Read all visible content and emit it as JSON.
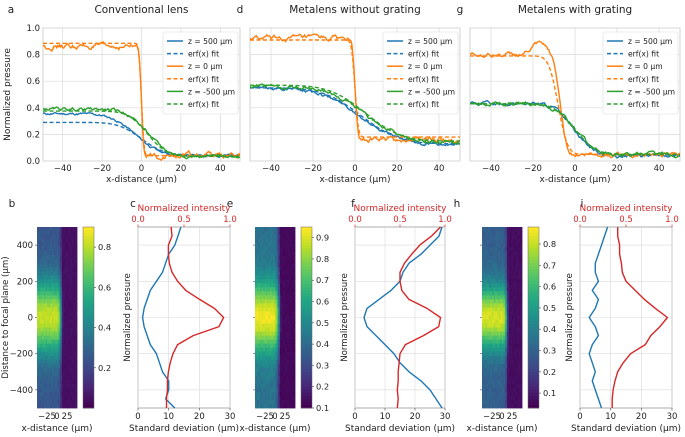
{
  "colors": {
    "blue": "#1f77b4",
    "orange": "#ff7f0e",
    "green": "#2ca02c",
    "red": "#d62728",
    "grid": "#d9d9d9",
    "axis": "#555555"
  },
  "top_panels": [
    {
      "letter": "a",
      "title": "Conventional lens"
    },
    {
      "letter": "d",
      "title": "Metalens without grating"
    },
    {
      "letter": "g",
      "title": "Metalens with grating"
    }
  ],
  "top_axes": {
    "xlabel": "x-distance (µm)",
    "ylabel": "Normalized pressure",
    "xticks": [
      "−40",
      "−20",
      "0",
      "20",
      "40"
    ],
    "yticks": [
      "0.0",
      "0.2",
      "0.4",
      "0.6",
      "0.8",
      "1.0"
    ]
  },
  "legend": [
    {
      "label": "z = 500 µm",
      "color": "blue",
      "style": "solid"
    },
    {
      "label": "erf(x) fit",
      "color": "blue",
      "style": "dashed"
    },
    {
      "label": "z = 0 µm",
      "color": "orange",
      "style": "solid"
    },
    {
      "label": "erf(x) fit",
      "color": "orange",
      "style": "dashed"
    },
    {
      "label": "z = -500 µm",
      "color": "green",
      "style": "solid"
    },
    {
      "label": "erf(x) fit",
      "color": "green",
      "style": "dashed"
    }
  ],
  "heatmaps": [
    {
      "letter": "b",
      "cbar_ticks": [
        "0.2",
        "0.4",
        "0.6",
        "0.8"
      ]
    },
    {
      "letter": "e",
      "cbar_ticks": [
        "0.1",
        "0.2",
        "0.3",
        "0.4",
        "0.5",
        "0.6",
        "0.7",
        "0.8",
        "0.9"
      ]
    },
    {
      "letter": "h",
      "cbar_ticks": [
        "0.1",
        "0.2",
        "0.3",
        "0.4",
        "0.5",
        "0.6",
        "0.7",
        "0.8"
      ]
    }
  ],
  "heatmap_axes": {
    "ylabel": "Distance to focal plane (µm)",
    "yticks": [
      "400",
      "200",
      "0",
      "−200",
      "−400"
    ],
    "xlabel": "x-distance (µm)",
    "xticks": [
      "−25",
      "0",
      "25"
    ]
  },
  "profiles": [
    {
      "letter": "c"
    },
    {
      "letter": "f"
    },
    {
      "letter": "i"
    }
  ],
  "profile_axes": {
    "top_label": "Normalized intensity",
    "top_ticks": [
      "0.0",
      "0.5",
      "1.0"
    ],
    "xlabel": "Standard deviation (µm)",
    "xticks": [
      "0",
      "10",
      "20",
      "30"
    ],
    "ylabel": "Normalized pressure"
  },
  "chart_data": [
    {
      "type": "line",
      "panel": "a",
      "title": "Conventional lens",
      "xlabel": "x-distance (µm)",
      "ylabel": "Normalized pressure",
      "xlim": [
        -50,
        50
      ],
      "ylim": [
        0,
        1
      ],
      "series": [
        {
          "name": "z = 500 µm",
          "kind": "erf",
          "style": "solid",
          "color": "blue",
          "left": 0.355,
          "right": 0.04,
          "center": -3,
          "width": 14,
          "noise": 0.008
        },
        {
          "name": "erf(x) fit",
          "kind": "erf",
          "style": "dashed",
          "color": "blue",
          "left": 0.29,
          "right": 0.045,
          "center": 0,
          "width": 13,
          "noise": 0
        },
        {
          "name": "z = 0 µm",
          "kind": "erf",
          "style": "solid",
          "color": "orange",
          "left": 0.86,
          "right": 0.04,
          "center": 0,
          "width": 1.3,
          "noise": 0.018
        },
        {
          "name": "erf(x) fit",
          "kind": "erf",
          "style": "dashed",
          "color": "orange",
          "left": 0.885,
          "right": 0.04,
          "center": 0,
          "width": 1.4,
          "noise": 0
        },
        {
          "name": "z = -500 µm",
          "kind": "erf",
          "style": "solid",
          "color": "green",
          "left": 0.39,
          "right": 0.035,
          "center": 3,
          "width": 12,
          "noise": 0.01
        },
        {
          "name": "erf(x) fit",
          "kind": "erf",
          "style": "dashed",
          "color": "green",
          "left": 0.375,
          "right": 0.035,
          "center": 3,
          "width": 11,
          "noise": 0
        }
      ]
    },
    {
      "type": "line",
      "panel": "d",
      "title": "Metalens without grating",
      "xlabel": "x-distance (µm)",
      "ylabel": "Normalized pressure",
      "xlim": [
        -50,
        50
      ],
      "ylim": [
        0,
        1
      ],
      "series": [
        {
          "name": "z = 500 µm",
          "kind": "erf",
          "style": "solid",
          "color": "blue",
          "left": 0.55,
          "right": 0.12,
          "center": 3,
          "width": 22,
          "noise": 0.01
        },
        {
          "name": "erf(x) fit",
          "kind": "erf",
          "style": "dashed",
          "color": "blue",
          "left": 0.55,
          "right": 0.13,
          "center": 3,
          "width": 20,
          "noise": 0
        },
        {
          "name": "z = 0 µm",
          "kind": "erf",
          "style": "solid",
          "color": "orange",
          "left": 0.92,
          "right": 0.16,
          "center": 0,
          "width": 1.6,
          "noise": 0.018
        },
        {
          "name": "erf(x) fit",
          "kind": "erf",
          "style": "dashed",
          "color": "orange",
          "left": 0.91,
          "right": 0.18,
          "center": 0,
          "width": 1.8,
          "noise": 0
        },
        {
          "name": "z = -500 µm",
          "kind": "erf",
          "style": "solid",
          "color": "green",
          "left": 0.56,
          "right": 0.14,
          "center": 5,
          "width": 20,
          "noise": 0.012
        },
        {
          "name": "erf(x) fit",
          "kind": "erf",
          "style": "dashed",
          "color": "green",
          "left": 0.57,
          "right": 0.15,
          "center": 5,
          "width": 19,
          "noise": 0
        }
      ]
    },
    {
      "type": "line",
      "panel": "g",
      "title": "Metalens with grating",
      "xlabel": "x-distance (µm)",
      "ylabel": "Normalized pressure",
      "xlim": [
        -50,
        50
      ],
      "ylim": [
        0,
        1
      ],
      "series": [
        {
          "name": "z = 500 µm",
          "kind": "erf",
          "style": "solid",
          "color": "blue",
          "left": 0.43,
          "right": 0.04,
          "center": 0,
          "width": 11,
          "noise": 0.012
        },
        {
          "name": "erf(x) fit",
          "kind": "erf",
          "style": "dashed",
          "color": "blue",
          "left": 0.43,
          "right": 0.045,
          "center": 0,
          "width": 11,
          "noise": 0
        },
        {
          "name": "z = 0 µm",
          "kind": "erf",
          "style": "solid",
          "color": "orange",
          "left": 0.8,
          "right": 0.05,
          "center": -7,
          "width": 3.5,
          "noise": 0.015,
          "bump": {
            "x": -17,
            "h": 0.08,
            "w": 5
          }
        },
        {
          "name": "erf(x) fit",
          "kind": "erf",
          "style": "dashed",
          "color": "orange",
          "left": 0.79,
          "right": 0.05,
          "center": -8,
          "width": 5,
          "noise": 0
        },
        {
          "name": "z = -500 µm",
          "kind": "erf",
          "style": "solid",
          "color": "green",
          "left": 0.43,
          "right": 0.05,
          "center": 0,
          "width": 11,
          "noise": 0.013
        },
        {
          "name": "erf(x) fit",
          "kind": "erf",
          "style": "dashed",
          "color": "green",
          "left": 0.43,
          "right": 0.05,
          "center": 0,
          "width": 11,
          "noise": 0
        }
      ]
    },
    {
      "type": "heatmap",
      "panel": "b",
      "xlabel": "x-distance (µm)",
      "ylabel": "Distance to focal plane (µm)",
      "xlim": [
        -50,
        50
      ],
      "ylim": [
        -500,
        500
      ],
      "colormap": "viridis",
      "clim": [
        0.0,
        0.9
      ],
      "field": {
        "edge": 10,
        "edge_width": 5,
        "focus": 0.82,
        "spread": 0.3,
        "beam_width": 200,
        "dark": 0.04
      }
    },
    {
      "type": "heatmap",
      "panel": "e",
      "xlabel": "x-distance (µm)",
      "ylabel": "Distance to focal plane (µm)",
      "xlim": [
        -50,
        50
      ],
      "ylim": [
        -500,
        500
      ],
      "colormap": "viridis",
      "clim": [
        0.1,
        0.95
      ],
      "field": {
        "edge": 10,
        "edge_width": 7,
        "focus": 0.93,
        "spread": 0.45,
        "beam_width": 190,
        "dark": 0.12
      }
    },
    {
      "type": "heatmap",
      "panel": "h",
      "xlabel": "x-distance (µm)",
      "ylabel": "Distance to focal plane (µm)",
      "xlim": [
        -50,
        50
      ],
      "ylim": [
        -500,
        500
      ],
      "colormap": "viridis",
      "clim": [
        0.03,
        0.88
      ],
      "field": {
        "edge": 12,
        "edge_width": 5,
        "focus": 0.83,
        "spread": 0.35,
        "beam_width": 170,
        "dark": 0.06
      }
    },
    {
      "type": "line",
      "panel": "c",
      "xlabel": "Standard deviation (µm)",
      "x2label": "Normalized intensity",
      "xlim": [
        0,
        30
      ],
      "x2lim": [
        0,
        1
      ],
      "ylim": [
        -500,
        500
      ],
      "orientation": "vertical",
      "series": [
        {
          "name": "Standard deviation",
          "color": "blue",
          "axis": "bottom",
          "z": [
            -500,
            -450,
            -400,
            -350,
            -300,
            -250,
            -200,
            -150,
            -100,
            -50,
            0,
            50,
            100,
            150,
            200,
            250,
            300,
            350,
            400,
            450,
            500
          ],
          "v": [
            12,
            9,
            10,
            10,
            8,
            7,
            6,
            4,
            3,
            2,
            1.5,
            2,
            3,
            4,
            6,
            8,
            9,
            10,
            12,
            13,
            14
          ]
        },
        {
          "name": "Normalized intensity",
          "color": "red",
          "axis": "top",
          "z": [
            -500,
            -450,
            -400,
            -350,
            -300,
            -250,
            -200,
            -150,
            -100,
            -50,
            0,
            50,
            100,
            150,
            200,
            250,
            300,
            350,
            400,
            450,
            500
          ],
          "v": [
            0.31,
            0.31,
            0.32,
            0.32,
            0.33,
            0.35,
            0.38,
            0.43,
            0.6,
            0.88,
            0.93,
            0.83,
            0.67,
            0.52,
            0.43,
            0.37,
            0.34,
            0.33,
            0.33,
            0.37,
            0.36
          ]
        }
      ]
    },
    {
      "type": "line",
      "panel": "f",
      "xlabel": "Standard deviation (µm)",
      "x2label": "Normalized intensity",
      "xlim": [
        0,
        30
      ],
      "x2lim": [
        0,
        1
      ],
      "ylim": [
        -500,
        500
      ],
      "orientation": "vertical",
      "series": [
        {
          "name": "Standard deviation",
          "color": "blue",
          "axis": "bottom",
          "z": [
            -500,
            -450,
            -400,
            -350,
            -300,
            -250,
            -200,
            -150,
            -100,
            -50,
            0,
            50,
            100,
            150,
            200,
            250,
            300,
            350,
            400,
            450,
            500
          ],
          "v": [
            29,
            27,
            25,
            22,
            18,
            15,
            13,
            10,
            7,
            4,
            3,
            4,
            8,
            12,
            15,
            16,
            18,
            22,
            25,
            28,
            29
          ]
        },
        {
          "name": "Normalized intensity",
          "color": "red",
          "axis": "top",
          "z": [
            -500,
            -450,
            -400,
            -350,
            -300,
            -250,
            -200,
            -150,
            -100,
            -50,
            0,
            50,
            100,
            150,
            200,
            250,
            300,
            350,
            400,
            450,
            500
          ],
          "v": [
            0.47,
            0.48,
            0.47,
            0.48,
            0.48,
            0.49,
            0.5,
            0.56,
            0.76,
            0.93,
            0.95,
            0.8,
            0.6,
            0.52,
            0.5,
            0.5,
            0.55,
            0.63,
            0.72,
            0.85,
            0.95
          ]
        }
      ]
    },
    {
      "type": "line",
      "panel": "i",
      "xlabel": "Standard deviation (µm)",
      "x2label": "Normalized intensity",
      "xlim": [
        0,
        30
      ],
      "x2lim": [
        0,
        1
      ],
      "ylim": [
        -500,
        500
      ],
      "orientation": "vertical",
      "series": [
        {
          "name": "Standard deviation",
          "color": "blue",
          "axis": "bottom",
          "z": [
            -500,
            -450,
            -400,
            -350,
            -300,
            -250,
            -200,
            -150,
            -100,
            -50,
            0,
            50,
            100,
            150,
            200,
            250,
            300,
            350,
            400,
            450,
            500
          ],
          "v": [
            7,
            6,
            5,
            4,
            5,
            4,
            3,
            4,
            6,
            5,
            3,
            5,
            6,
            4,
            6,
            5,
            5,
            6,
            7,
            8,
            9
          ]
        },
        {
          "name": "Normalized intensity",
          "color": "red",
          "axis": "top",
          "z": [
            -500,
            -450,
            -400,
            -350,
            -300,
            -250,
            -200,
            -150,
            -100,
            -50,
            0,
            50,
            100,
            150,
            200,
            250,
            300,
            350,
            400,
            450,
            500
          ],
          "v": [
            0.35,
            0.35,
            0.36,
            0.38,
            0.41,
            0.47,
            0.55,
            0.71,
            0.77,
            0.87,
            0.95,
            0.82,
            0.7,
            0.6,
            0.5,
            0.46,
            0.45,
            0.43,
            0.43,
            0.41,
            0.41
          ]
        }
      ]
    }
  ]
}
